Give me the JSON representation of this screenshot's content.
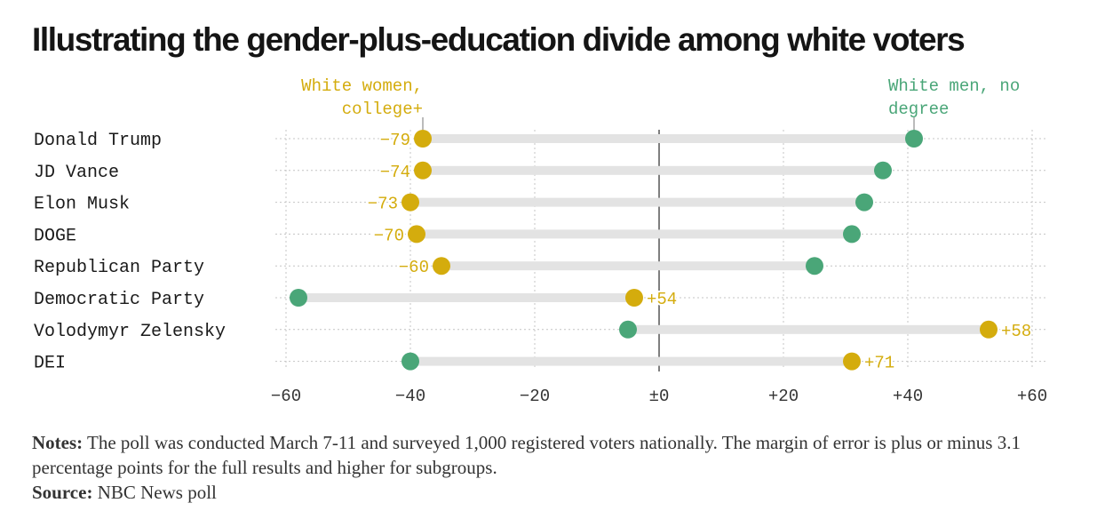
{
  "title": "Illustrating the gender-plus-education divide among white voters",
  "colors": {
    "women_college": "#d4ac0d",
    "men_no_degree": "#4aa678",
    "bar": "#e3e3e3",
    "zero_line": "#555555",
    "grid": "#c4c4c4"
  },
  "chart_data": {
    "type": "dot-plot",
    "xlim": [
      -60,
      60
    ],
    "xticks": [
      -60,
      -40,
      -20,
      0,
      20,
      40,
      60
    ],
    "xtick_labels": [
      "−60",
      "−40",
      "−20",
      "±0",
      "+20",
      "+40",
      "+60"
    ],
    "grid": true,
    "legend": [
      {
        "key": "women_college",
        "lines": [
          "White women,",
          "college+"
        ]
      },
      {
        "key": "men_no_degree",
        "lines": [
          "White men, no",
          "degree"
        ]
      }
    ],
    "categories": [
      "Donald Trump",
      "JD Vance",
      "Elon Musk",
      "DOGE",
      "Republican Party",
      "Democratic Party",
      "Volodymyr Zelensky",
      "DEI"
    ],
    "series": [
      {
        "name": "White women, college+",
        "key": "women_college",
        "values": [
          -38,
          -38,
          -40,
          -39,
          -35,
          -4,
          53,
          31
        ]
      },
      {
        "name": "White men, no degree",
        "key": "men_no_degree",
        "values": [
          41,
          36,
          33,
          31,
          25,
          -58,
          -5,
          -40
        ]
      }
    ],
    "gap_labels": [
      "−79",
      "−74",
      "−73",
      "−70",
      "−60",
      "+54",
      "+58",
      "+71"
    ]
  },
  "notes": {
    "label": "Notes:",
    "text": " The poll was conducted March 7-11 and surveyed 1,000 registered voters nationally. The margin of error is plus or minus 3.1 percentage points for the full results and higher for subgroups."
  },
  "source": {
    "label": "Source:",
    "text": " NBC News poll"
  }
}
